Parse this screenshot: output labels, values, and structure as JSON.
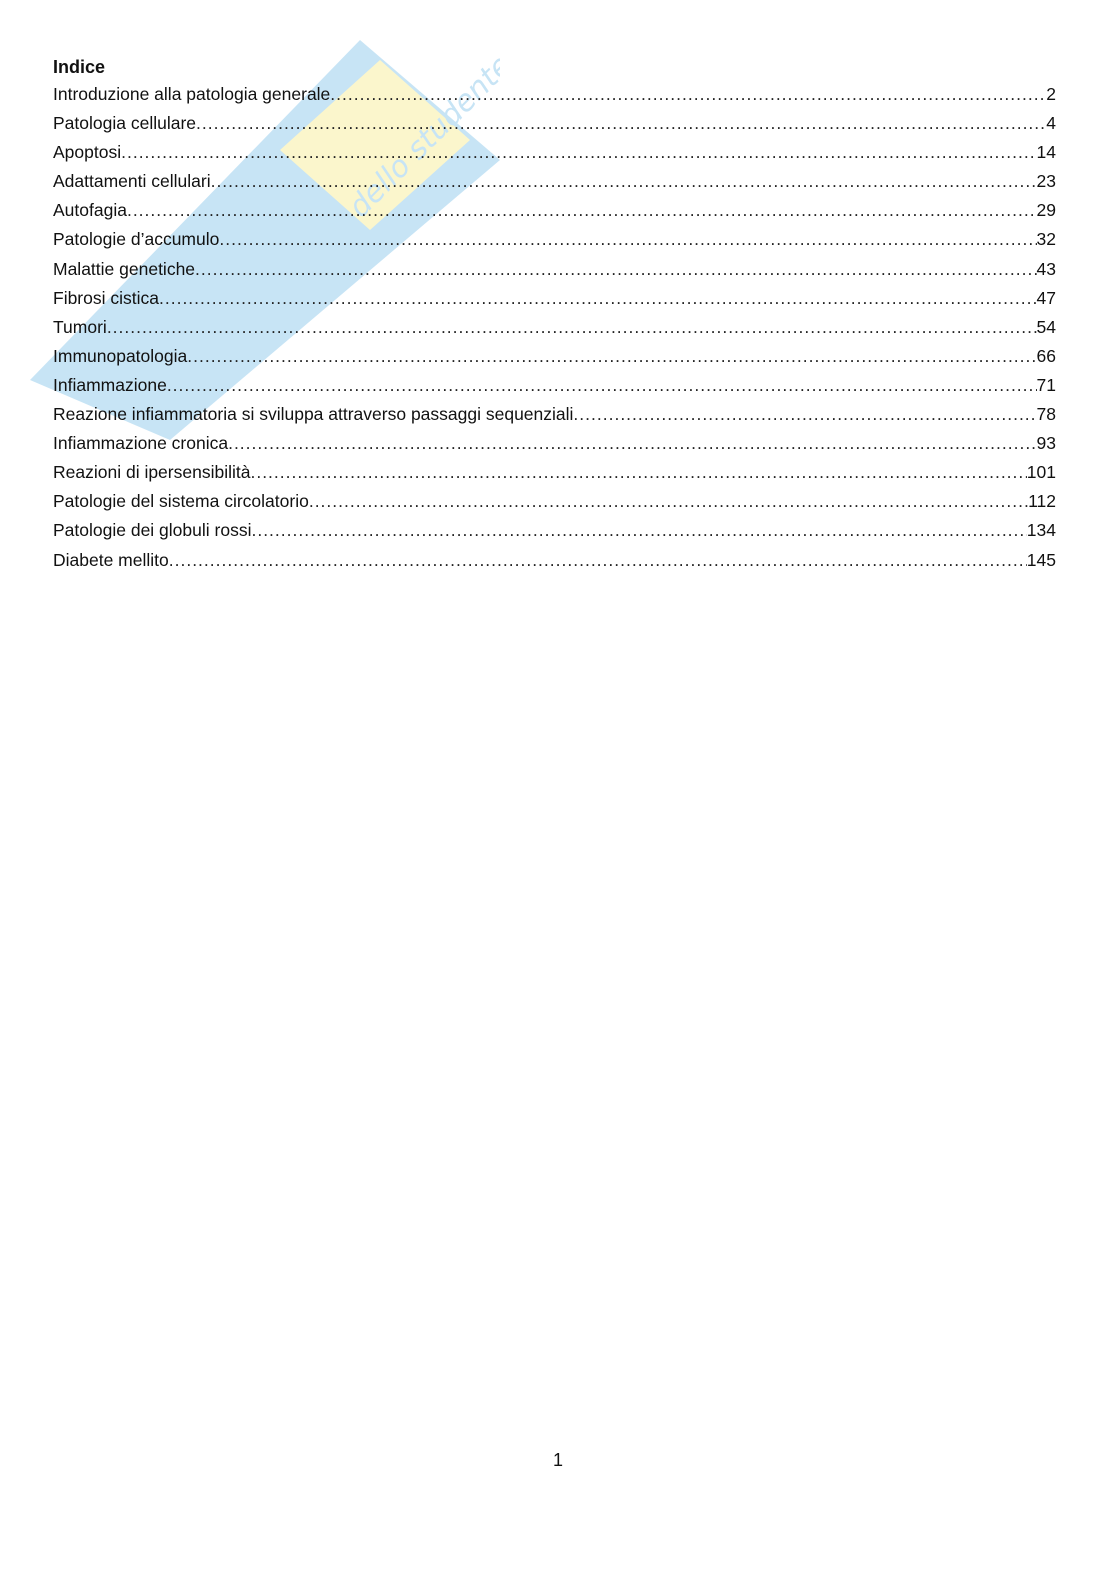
{
  "watermark": {
    "text": "Skuola.net",
    "tagline": "amico dello studente",
    "colors": [
      "#3aa0dc",
      "#f4e04d"
    ]
  },
  "toc": {
    "title": "Indice",
    "entries": [
      {
        "label": "Introduzione alla patologia generale",
        "page": "2"
      },
      {
        "label": "Patologia cellulare",
        "page": "4"
      },
      {
        "label": "Apoptosi",
        "page": "14"
      },
      {
        "label": "Adattamenti cellulari",
        "page": "23"
      },
      {
        "label": "Autofagia",
        "page": "29"
      },
      {
        "label": "Patologie d’accumulo",
        "page": "32"
      },
      {
        "label": "Malattie genetiche",
        "page": "43"
      },
      {
        "label": "Fibrosi cistica",
        "page": "47"
      },
      {
        "label": "Tumori",
        "page": "54"
      },
      {
        "label": "Immunopatologia",
        "page": "66"
      },
      {
        "label": "Infiammazione",
        "page": "71"
      },
      {
        "label": "Reazione infiammatoria si sviluppa attraverso passaggi sequenziali",
        "page": "78"
      },
      {
        "label": "Infiammazione cronica",
        "page": "93"
      },
      {
        "label": "Reazioni di ipersensibilità",
        "page": "101"
      },
      {
        "label": "Patologie del sistema circolatorio",
        "page": "112"
      },
      {
        "label": "Patologie dei globuli rossi",
        "page": "134"
      },
      {
        "label": "Diabete mellito",
        "page": "145"
      }
    ]
  },
  "footer": {
    "page_number": "1"
  }
}
